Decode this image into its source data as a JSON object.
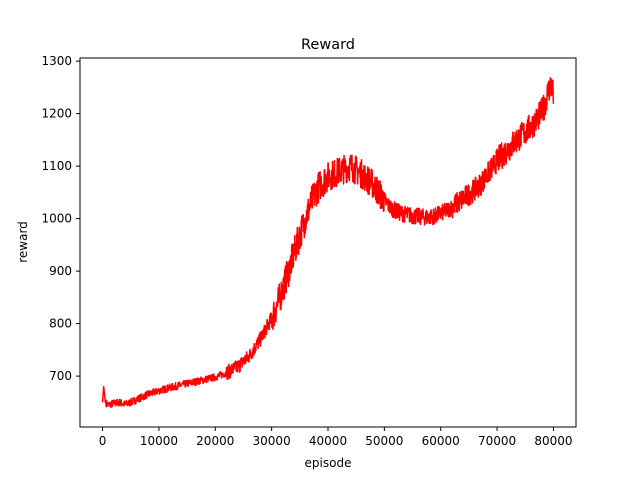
{
  "chart_data": {
    "type": "line",
    "title": "Reward",
    "xlabel": "episode",
    "ylabel": "reward",
    "xlim": [
      -4000,
      84000
    ],
    "ylim": [
      603,
      1306
    ],
    "grid": false,
    "legend": "none",
    "x_ticks": [
      0,
      10000,
      20000,
      30000,
      40000,
      50000,
      60000,
      70000,
      80000
    ],
    "y_ticks": [
      700,
      800,
      900,
      1000,
      1100,
      1200,
      1300
    ],
    "series": [
      {
        "color": "#ff0000",
        "x": [
          0,
          200,
          500,
          1000,
          2000,
          3000,
          4000,
          5000,
          6000,
          8000,
          10000,
          12000,
          14000,
          16000,
          18000,
          20000,
          22000,
          24000,
          26000,
          28000,
          30000,
          31000,
          32000,
          33000,
          34000,
          35000,
          36000,
          37000,
          38000,
          39000,
          40000,
          41000,
          42000,
          43000,
          44000,
          45000,
          46000,
          47000,
          48000,
          49000,
          50000,
          51000,
          52000,
          53000,
          54000,
          55000,
          56000,
          57000,
          58000,
          59000,
          60000,
          61000,
          62000,
          63000,
          64000,
          65000,
          66000,
          67000,
          68000,
          69000,
          70000,
          71000,
          72000,
          73000,
          74000,
          75000,
          76000,
          77000,
          78000,
          78500,
          79000,
          79500,
          80000
        ],
        "y": [
          650,
          680,
          650,
          645,
          648,
          650,
          646,
          650,
          655,
          665,
          672,
          678,
          683,
          688,
          693,
          698,
          706,
          718,
          738,
          770,
          810,
          835,
          868,
          900,
          935,
          968,
          1000,
          1030,
          1055,
          1070,
          1080,
          1085,
          1090,
          1095,
          1100,
          1092,
          1085,
          1075,
          1065,
          1050,
          1035,
          1022,
          1015,
          1010,
          1008,
          1005,
          1004,
          1003,
          1003,
          1005,
          1010,
          1015,
          1022,
          1030,
          1038,
          1046,
          1055,
          1065,
          1080,
          1095,
          1110,
          1122,
          1133,
          1145,
          1155,
          1165,
          1175,
          1188,
          1205,
          1218,
          1240,
          1255,
          1235
        ]
      }
    ]
  }
}
